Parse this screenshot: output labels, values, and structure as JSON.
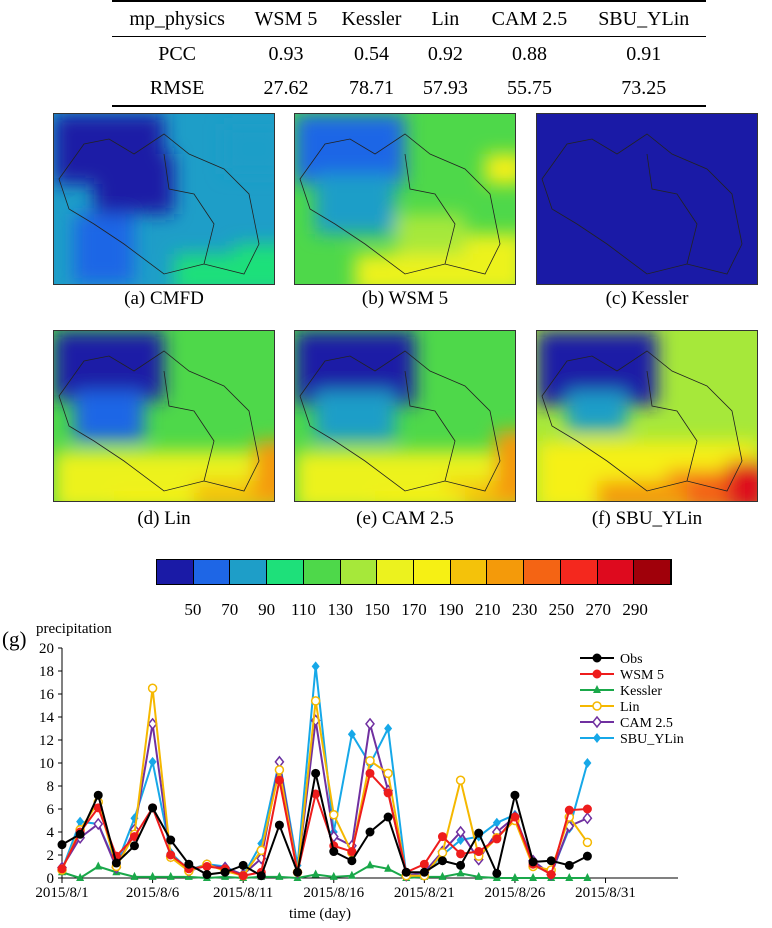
{
  "table": {
    "headers": [
      "mp_physics",
      "WSM 5",
      "Kessler",
      "Lin",
      "CAM 2.5",
      "SBU_YLin"
    ],
    "rows": [
      [
        "PCC",
        "0.93",
        "0.54",
        "0.92",
        "0.88",
        "0.91"
      ],
      [
        "RMSE",
        "27.62",
        "78.71",
        "57.93",
        "55.75",
        "73.25"
      ]
    ]
  },
  "maps": {
    "captions": [
      "(a) CMFD",
      "(b) WSM 5",
      "(c) Kessler",
      "(d) Lin",
      "(e) CAM 2.5",
      "(f) SBU_YLin"
    ]
  },
  "colorbar": {
    "colors": [
      "#1a1aa6",
      "#1e66e6",
      "#1e9ec8",
      "#1ee07a",
      "#4ed84a",
      "#a6e83a",
      "#ecf21e",
      "#f6f014",
      "#f4c20a",
      "#f49a0a",
      "#f46414",
      "#f4281e",
      "#de0a1e",
      "#a0000a"
    ],
    "labels": [
      "50",
      "70",
      "90",
      "110",
      "130",
      "150",
      "170",
      "190",
      "210",
      "230",
      "250",
      "270",
      "290"
    ]
  },
  "chart_data": {
    "type": "line",
    "panel_label": "(g)",
    "ylabel": "precipitation",
    "xlabel": "time (day)",
    "ylim": [
      0,
      20
    ],
    "yticks": [
      "0",
      "2",
      "4",
      "6",
      "8",
      "10",
      "12",
      "14",
      "16",
      "18",
      "20"
    ],
    "xlim": [
      "2015/8/1",
      "2015/9/4"
    ],
    "xticks": [
      "2015/8/1",
      "2015/8/6",
      "2015/8/11",
      "2015/8/16",
      "2015/8/21",
      "2015/8/26",
      "2015/8/31"
    ],
    "legend_position": "top-right",
    "x": [
      "2015/8/1",
      "2015/8/2",
      "2015/8/3",
      "2015/8/4",
      "2015/8/5",
      "2015/8/6",
      "2015/8/7",
      "2015/8/8",
      "2015/8/9",
      "2015/8/10",
      "2015/8/11",
      "2015/8/12",
      "2015/8/13",
      "2015/8/14",
      "2015/8/15",
      "2015/8/16",
      "2015/8/17",
      "2015/8/18",
      "2015/8/19",
      "2015/8/20",
      "2015/8/21",
      "2015/8/22",
      "2015/8/23",
      "2015/8/24",
      "2015/8/25",
      "2015/8/26",
      "2015/8/27",
      "2015/8/28",
      "2015/8/29",
      "2015/8/30"
    ],
    "series": [
      {
        "name": "Obs",
        "color": "#000000",
        "marker": "circle-filled",
        "values": [
          2.9,
          3.8,
          7.2,
          1.3,
          2.8,
          6.1,
          3.3,
          1.2,
          0.3,
          0.5,
          1.1,
          0.2,
          4.6,
          0.5,
          9.1,
          2.3,
          1.5,
          4.0,
          5.3,
          0.5,
          0.5,
          1.5,
          1.1,
          3.9,
          0.4,
          7.2,
          1.4,
          1.5,
          1.1,
          1.9
        ]
      },
      {
        "name": "WSM 5",
        "color": "#ee1c1c",
        "marker": "circle-filled",
        "values": [
          0.8,
          4.0,
          6.1,
          1.9,
          3.6,
          6.1,
          2.0,
          0.8,
          1.0,
          0.8,
          0.2,
          0.5,
          8.5,
          0.5,
          7.3,
          2.8,
          2.3,
          9.1,
          7.4,
          0.5,
          1.2,
          3.6,
          2.1,
          2.3,
          3.4,
          5.3,
          1.2,
          0.3,
          5.9,
          6.0
        ]
      },
      {
        "name": "Kessler",
        "color": "#1aa84a",
        "marker": "triangle-filled",
        "values": [
          0.5,
          0.0,
          1.0,
          0.5,
          0.1,
          0.1,
          0.1,
          0.1,
          0.0,
          0.1,
          0.0,
          0.1,
          0.1,
          0.0,
          0.3,
          0.1,
          0.2,
          1.1,
          0.8,
          0.0,
          0.1,
          0.1,
          0.4,
          0.1,
          0.0,
          0.0,
          0.0,
          0.0,
          0.0,
          0.0
        ]
      },
      {
        "name": "Lin",
        "color": "#f5b800",
        "marker": "circle-open",
        "values": [
          0.7,
          4.2,
          6.6,
          1.0,
          3.8,
          16.5,
          1.8,
          0.6,
          1.2,
          0.6,
          0.2,
          2.4,
          9.4,
          0.5,
          15.4,
          5.5,
          2.2,
          10.2,
          9.1,
          0.2,
          0.2,
          2.2,
          8.5,
          1.9,
          3.5,
          5.0,
          1.0,
          0.7,
          5.3,
          3.1
        ]
      },
      {
        "name": "CAM 2.5",
        "color": "#7030a0",
        "marker": "diamond-open",
        "values": [
          0.9,
          3.5,
          4.7,
          0.9,
          4.2,
          13.4,
          1.9,
          0.6,
          1.1,
          0.9,
          0.3,
          1.7,
          10.1,
          0.5,
          13.7,
          3.6,
          2.8,
          13.4,
          7.6,
          0.2,
          0.5,
          2.3,
          4.0,
          1.6,
          4.0,
          5.3,
          1.5,
          0.3,
          4.5,
          5.2
        ]
      },
      {
        "name": "SBU_YLin",
        "color": "#16a8e8",
        "marker": "diamond-filled",
        "values": [
          0.7,
          4.9,
          4.7,
          1.1,
          5.2,
          10.1,
          2.2,
          0.7,
          1.2,
          1.0,
          0.2,
          3.0,
          10.2,
          1.1,
          18.4,
          4.0,
          12.5,
          9.9,
          13.0,
          0.3,
          0.3,
          2.0,
          3.3,
          3.6,
          4.8,
          5.5,
          1.1,
          0.4,
          4.3,
          10.0
        ]
      }
    ]
  }
}
